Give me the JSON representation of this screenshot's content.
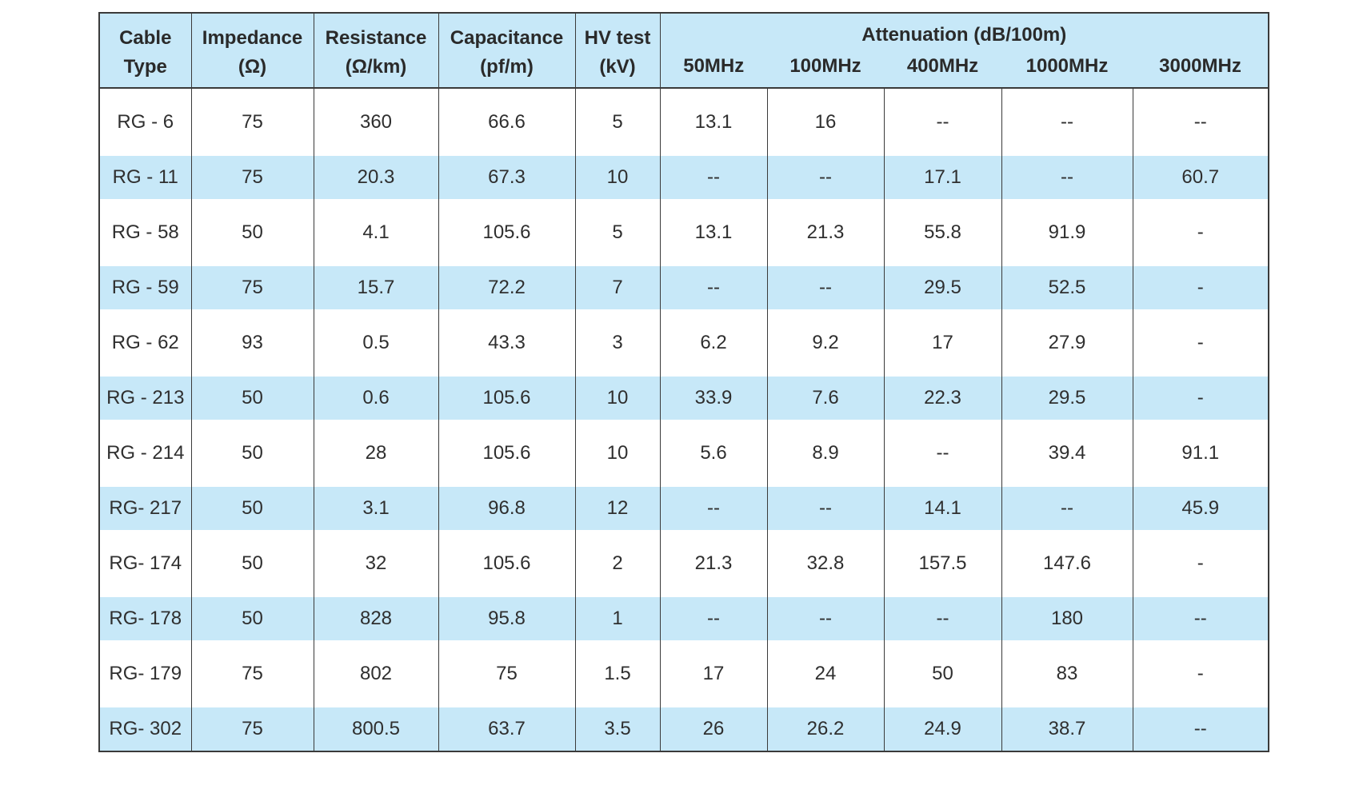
{
  "table": {
    "headers": {
      "cable_type": [
        "Cable",
        "Type"
      ],
      "impedance": [
        "Impedance",
        "(Ω)"
      ],
      "resistance": [
        "Resistance",
        "(Ω/km)"
      ],
      "capacitance": [
        "Capacitance",
        "(pf/m)"
      ],
      "hv_test": [
        "HV test",
        "(kV)"
      ],
      "attenuation_group": "Attenuation (dB/100m)",
      "frequencies": [
        "50MHz",
        "100MHz",
        "400MHz",
        "1000MHz",
        "3000MHz"
      ]
    },
    "rows": [
      [
        "RG - 6",
        "75",
        "360",
        "66.6",
        "5",
        "13.1",
        "16",
        "--",
        "--",
        "--"
      ],
      [
        "RG - 11",
        "75",
        "20.3",
        "67.3",
        "10",
        "--",
        "--",
        "17.1",
        "--",
        "60.7"
      ],
      [
        "RG - 58",
        "50",
        "4.1",
        "105.6",
        "5",
        "13.1",
        "21.3",
        "55.8",
        "91.9",
        "-"
      ],
      [
        "RG - 59",
        "75",
        "15.7",
        "72.2",
        "7",
        "--",
        "--",
        "29.5",
        "52.5",
        "-"
      ],
      [
        "RG - 62",
        "93",
        "0.5",
        "43.3",
        "3",
        "6.2",
        "9.2",
        "17",
        "27.9",
        "-"
      ],
      [
        "RG - 213",
        "50",
        "0.6",
        "105.6",
        "10",
        "33.9",
        "7.6",
        "22.3",
        "29.5",
        "-"
      ],
      [
        "RG - 214",
        "50",
        "28",
        "105.6",
        "10",
        "5.6",
        "8.9",
        "--",
        "39.4",
        "91.1"
      ],
      [
        "RG-   217",
        "50",
        "3.1",
        "96.8",
        "12",
        "--",
        "--",
        "14.1",
        "--",
        "45.9"
      ],
      [
        "RG-  174",
        "50",
        "32",
        "105.6",
        "2",
        "21.3",
        "32.8",
        "157.5",
        "147.6",
        "-"
      ],
      [
        "RG- 178",
        "50",
        "828",
        "95.8",
        "1",
        "--",
        "--",
        "--",
        "180",
        "--"
      ],
      [
        "RG- 179",
        "75",
        "802",
        "75",
        "1.5",
        "17",
        "24",
        "50",
        "83",
        "-"
      ],
      [
        "RG- 302",
        "75",
        "800.5",
        "63.7",
        "3.5",
        "26",
        "26.2",
        "24.9",
        "38.7",
        "--"
      ]
    ]
  },
  "colors": {
    "header_bg": "#c7e8f8",
    "stripe_bg": "#c7e8f8",
    "border": "#3a3a3a",
    "text": "#2a2a2a"
  }
}
